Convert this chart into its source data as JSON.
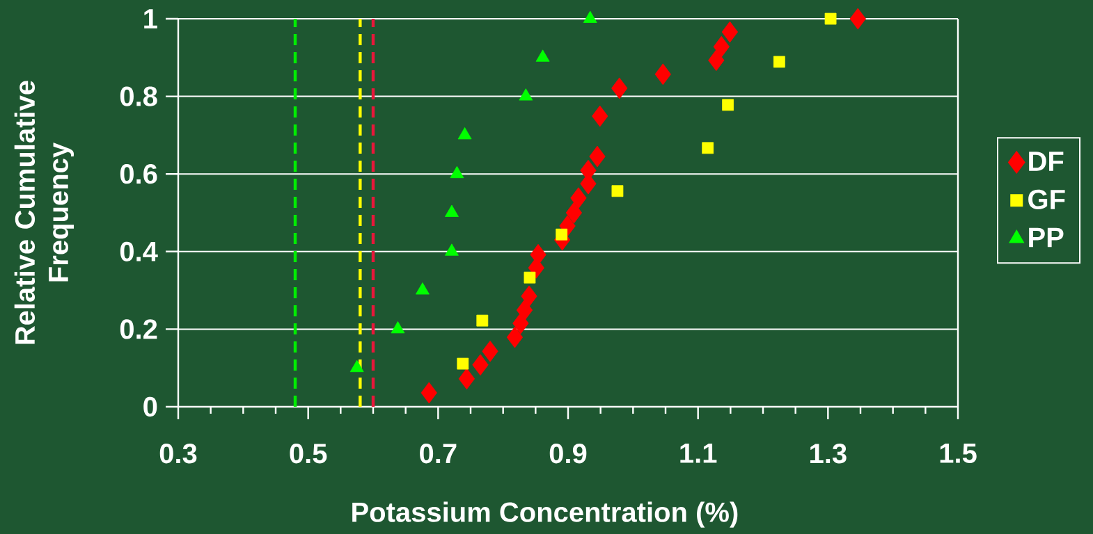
{
  "chart_data": {
    "type": "scatter",
    "xlabel": "Potassium Concentration (%)",
    "ylabel": "Relative Cumulative Frequency",
    "series": [
      {
        "name": "DF",
        "color": "#ff0000",
        "marker": "diamond",
        "x": [
          0.686,
          0.744,
          0.765,
          0.78,
          0.818,
          0.827,
          0.833,
          0.84,
          0.851,
          0.854,
          0.891,
          0.899,
          0.909,
          0.916,
          0.931,
          0.931,
          0.945,
          0.949,
          0.979,
          1.046,
          1.128,
          1.136,
          1.149,
          1.346
        ],
        "values": [
          0.036,
          0.072,
          0.108,
          0.143,
          0.179,
          0.215,
          0.249,
          0.285,
          0.358,
          0.392,
          0.43,
          0.466,
          0.5,
          0.538,
          0.575,
          0.609,
          0.645,
          0.749,
          0.821,
          0.857,
          0.893,
          0.928,
          0.966,
          1.0
        ]
      },
      {
        "name": "GF",
        "color": "#ffff00",
        "marker": "square",
        "x": [
          0.738,
          0.768,
          0.841,
          0.89,
          0.976,
          1.115,
          1.146,
          1.225,
          1.304
        ],
        "values": [
          0.111,
          0.222,
          0.333,
          0.444,
          0.556,
          0.667,
          0.778,
          0.889,
          1.0
        ]
      },
      {
        "name": "PP",
        "color": "#00ff00",
        "marker": "triangle",
        "x": [
          0.575,
          0.638,
          0.676,
          0.721,
          0.721,
          0.729,
          0.741,
          0.835,
          0.861,
          0.934
        ],
        "values": [
          0.1,
          0.2,
          0.3,
          0.4,
          0.5,
          0.6,
          0.7,
          0.8,
          0.9,
          1.0
        ]
      }
    ],
    "xlim": [
      0.3,
      1.5
    ],
    "ylim": [
      0,
      1
    ],
    "xticks": [
      0.3,
      {
        "value": 0.35,
        "label": null
      },
      {
        "value": 0.4,
        "label": null
      },
      {
        "value": 0.45,
        "label": null
      },
      0.5,
      {
        "value": 0.55,
        "label": null
      },
      {
        "value": 0.6,
        "label": null
      },
      {
        "value": 0.65,
        "label": null
      },
      0.7,
      {
        "value": 0.75,
        "label": null
      },
      {
        "value": 0.8,
        "label": null
      },
      {
        "value": 0.85,
        "label": null
      },
      0.9,
      {
        "value": 0.95,
        "label": null
      },
      {
        "value": 1.0,
        "label": null
      },
      {
        "value": 1.05,
        "label": null
      },
      1.1,
      {
        "value": 1.15,
        "label": null
      },
      {
        "value": 1.2,
        "label": null
      },
      {
        "value": 1.25,
        "label": null
      },
      1.3,
      {
        "value": 1.35,
        "label": null
      },
      {
        "value": 1.4,
        "label": null
      },
      {
        "value": 1.45,
        "label": null
      },
      1.5
    ],
    "yticks": [
      0,
      0.2,
      0.4,
      0.6,
      0.8,
      1
    ],
    "ref_lines": [
      {
        "axis": "x",
        "value": 0.48,
        "color": "#00ee00",
        "line_style": "dashed"
      },
      {
        "axis": "x",
        "value": 0.58,
        "color": "#ffff00",
        "line_style": "dashed"
      },
      {
        "axis": "x",
        "value": 0.6,
        "color": "#e8173a",
        "line_style": "dashed"
      }
    ],
    "grid": "y",
    "legend": "right"
  }
}
